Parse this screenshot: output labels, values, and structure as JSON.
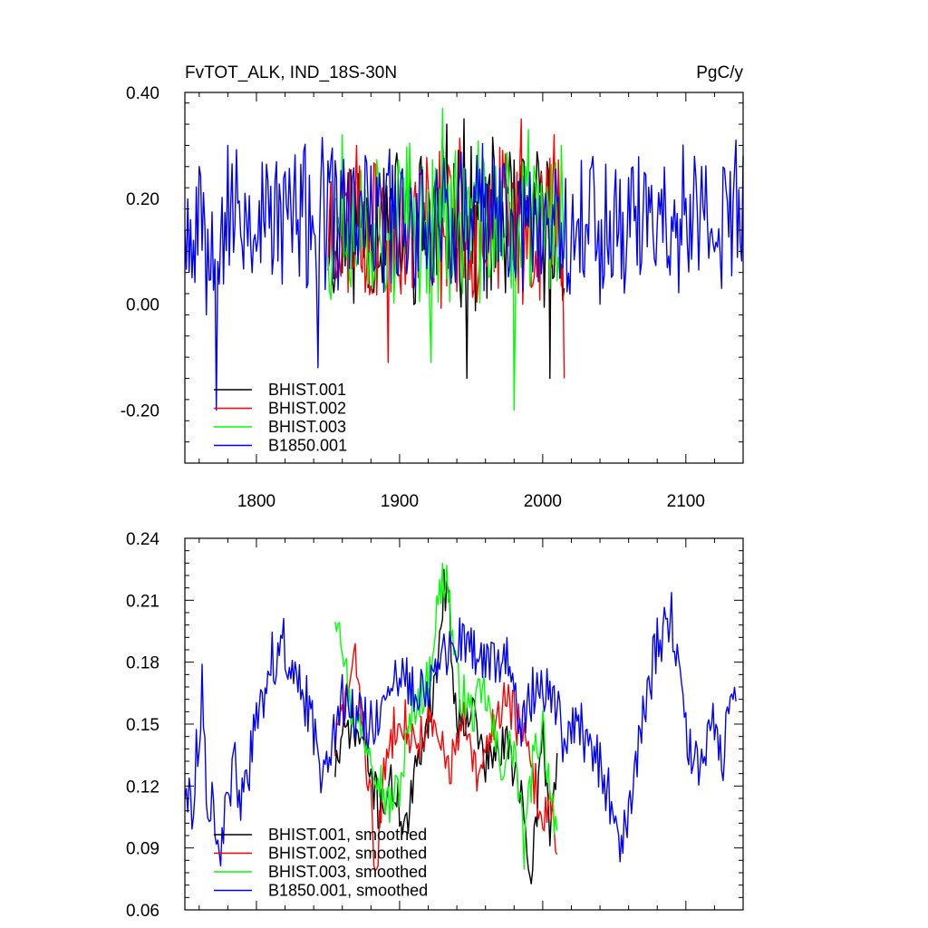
{
  "chart_data": [
    {
      "type": "line",
      "title": "FvTOT_ALK, IND_18S-30N",
      "units": "PgC/y",
      "xlim": [
        1750,
        2140
      ],
      "ylim": [
        -0.3,
        0.4
      ],
      "x_ticks": [
        1800,
        1900,
        2000,
        2100
      ],
      "x_tick_labels": [
        "1800",
        "1900",
        "2000",
        "2100"
      ],
      "y_ticks": [
        -0.2,
        0.0,
        0.2,
        0.4
      ],
      "y_tick_labels": [
        "-0.20",
        "0.00",
        "0.20",
        "0.40"
      ],
      "legend_position": "bottom-left",
      "series": [
        {
          "name": "BHIST.001",
          "color": "#000000",
          "x_start": 1850,
          "x_end": 2015,
          "mean": 0.15,
          "amp": 0.14,
          "seed": 11,
          "x": [
            1855,
            1880,
            1900,
            1920,
            1930,
            1933,
            1940,
            1945,
            1947,
            1960,
            1970,
            1990,
            2000,
            2005,
            2010,
            2015
          ],
          "y": [
            0.05,
            0.15,
            0.12,
            0.22,
            0.33,
            0.34,
            0.1,
            0.35,
            -0.14,
            0.24,
            0.1,
            0.2,
            0.2,
            -0.14,
            0.2,
            0.03
          ]
        },
        {
          "name": "BHIST.002",
          "color": "#ff0000",
          "x_start": 1850,
          "x_end": 2015,
          "mean": 0.15,
          "amp": 0.14,
          "seed": 23,
          "x": [
            1855,
            1870,
            1892,
            1910,
            1925,
            1935,
            1950,
            1965,
            1985,
            1995,
            2008,
            2015
          ],
          "y": [
            0.1,
            0.3,
            -0.11,
            0.2,
            0.15,
            0.25,
            0.1,
            0.2,
            0.35,
            0.1,
            0.32,
            -0.14
          ]
        },
        {
          "name": "BHIST.003",
          "color": "#00ff00",
          "x_start": 1850,
          "x_end": 2015,
          "mean": 0.15,
          "amp": 0.14,
          "seed": 37,
          "x": [
            1855,
            1860,
            1880,
            1900,
            1922,
            1930,
            1950,
            1970,
            1980,
            1990,
            2000,
            2013
          ],
          "y": [
            0.2,
            0.32,
            0.1,
            0.25,
            -0.11,
            0.37,
            0.2,
            0.1,
            -0.2,
            0.33,
            0.15,
            0.3
          ]
        },
        {
          "name": "B1850.001",
          "color": "#0000ff",
          "x_start": 1750,
          "x_end": 2140,
          "mean": 0.16,
          "amp": 0.13,
          "seed": 53,
          "x": [
            1750,
            1755,
            1760,
            1765,
            1772,
            1780,
            1800,
            1820,
            1843,
            1860,
            1900,
            1950,
            2000,
            2040,
            2050,
            2080,
            2100,
            2125,
            2135,
            2140
          ],
          "y": [
            0.14,
            0.05,
            0.26,
            -0.02,
            -0.2,
            0.3,
            0.1,
            0.25,
            -0.12,
            0.2,
            0.15,
            0.18,
            0.1,
            0.0,
            0.2,
            0.15,
            0.2,
            0.03,
            0.31,
            0.28
          ]
        }
      ]
    },
    {
      "type": "line",
      "title": "",
      "xlim": [
        1750,
        2140
      ],
      "ylim": [
        0.06,
        0.24
      ],
      "x_ticks": [
        1800,
        1900,
        2000,
        2100
      ],
      "y_ticks": [
        0.06,
        0.09,
        0.12,
        0.15,
        0.18,
        0.21,
        0.24
      ],
      "y_tick_labels": [
        "0.06",
        "0.09",
        "0.12",
        "0.15",
        "0.18",
        "0.21",
        "0.24"
      ],
      "legend_position": "bottom-left",
      "series": [
        {
          "name": "BHIST.001, smoothed",
          "color": "#000000",
          "x_start": 1855,
          "x_end": 2010,
          "mean": 0.14,
          "amp": 0.012,
          "seed": 71,
          "x": [
            1855,
            1865,
            1875,
            1885,
            1895,
            1905,
            1915,
            1925,
            1930,
            1933,
            1940,
            1950,
            1960,
            1975,
            1985,
            1990,
            1995,
            2000,
            2005,
            2010
          ],
          "y": [
            0.13,
            0.15,
            0.14,
            0.11,
            0.12,
            0.1,
            0.14,
            0.17,
            0.21,
            0.22,
            0.15,
            0.16,
            0.13,
            0.14,
            0.12,
            0.068,
            0.1,
            0.15,
            0.1,
            0.13
          ]
        },
        {
          "name": "BHIST.002, smoothed",
          "color": "#ff0000",
          "x_start": 1855,
          "x_end": 2010,
          "mean": 0.14,
          "amp": 0.012,
          "seed": 83,
          "x": [
            1855,
            1865,
            1870,
            1876,
            1880,
            1883,
            1890,
            1900,
            1910,
            1920,
            1935,
            1945,
            1955,
            1965,
            1975,
            1985,
            1995,
            2000,
            2005,
            2010
          ],
          "y": [
            0.14,
            0.17,
            0.18,
            0.14,
            0.11,
            0.075,
            0.13,
            0.16,
            0.14,
            0.15,
            0.13,
            0.15,
            0.12,
            0.15,
            0.165,
            0.145,
            0.12,
            0.1,
            0.12,
            0.09
          ]
        },
        {
          "name": "BHIST.003, smoothed",
          "color": "#00ff00",
          "x_start": 1855,
          "x_end": 2010,
          "mean": 0.15,
          "amp": 0.012,
          "seed": 97,
          "x": [
            1855,
            1858,
            1862,
            1865,
            1870,
            1880,
            1892,
            1900,
            1910,
            1920,
            1925,
            1930,
            1933,
            1940,
            1950,
            1960,
            1970,
            1980,
            1987,
            1993,
            2000,
            2005,
            2010
          ],
          "y": [
            0.205,
            0.205,
            0.18,
            0.16,
            0.15,
            0.14,
            0.11,
            0.12,
            0.16,
            0.17,
            0.2,
            0.22,
            0.223,
            0.17,
            0.155,
            0.165,
            0.13,
            0.14,
            0.09,
            0.13,
            0.15,
            0.12,
            0.1
          ]
        },
        {
          "name": "B1850.001, smoothed",
          "color": "#0000ff",
          "x_start": 1750,
          "x_end": 2135,
          "mean": 0.15,
          "amp": 0.014,
          "seed": 113,
          "x": [
            1750,
            1755,
            1762,
            1765,
            1770,
            1775,
            1785,
            1790,
            1800,
            1810,
            1820,
            1825,
            1835,
            1845,
            1860,
            1880,
            1900,
            1920,
            1940,
            1960,
            1975,
            1985,
            1995,
            2005,
            2015,
            2025,
            2040,
            2050,
            2055,
            2065,
            2080,
            2090,
            2100,
            2110,
            2115,
            2120,
            2125,
            2130,
            2135
          ],
          "y": [
            0.12,
            0.11,
            0.165,
            0.12,
            0.11,
            0.09,
            0.13,
            0.11,
            0.15,
            0.18,
            0.19,
            0.17,
            0.16,
            0.13,
            0.16,
            0.15,
            0.17,
            0.17,
            0.19,
            0.18,
            0.18,
            0.15,
            0.17,
            0.17,
            0.14,
            0.15,
            0.13,
            0.105,
            0.09,
            0.13,
            0.19,
            0.2,
            0.15,
            0.12,
            0.14,
            0.15,
            0.13,
            0.16,
            0.175
          ]
        }
      ]
    }
  ]
}
